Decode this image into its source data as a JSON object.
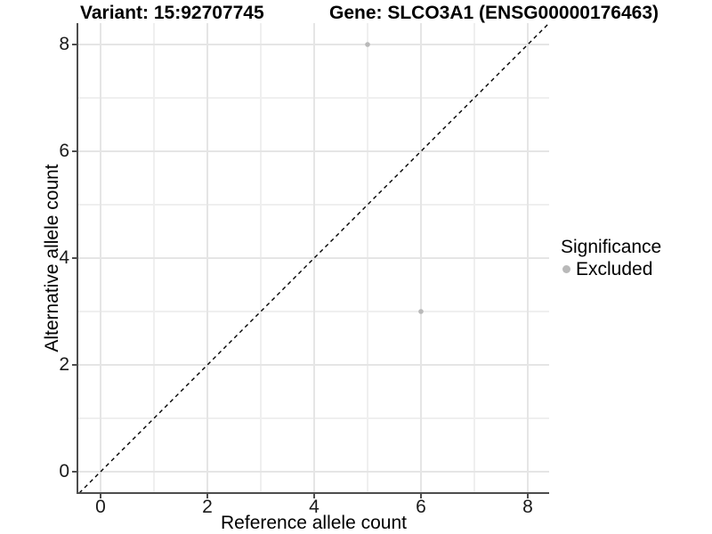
{
  "header": {
    "variant_title": "Variant: 15:92707745",
    "gene_title": "Gene: SLCO3A1 (ENSG00000176463)"
  },
  "chart_data": {
    "type": "scatter",
    "title_left": "Variant: 15:92707745",
    "title_right": "Gene: SLCO3A1 (ENSG00000176463)",
    "xlabel": "Reference allele count",
    "ylabel": "Alternative allele count",
    "xlim": [
      -0.4167,
      8.4
    ],
    "ylim": [
      -0.4,
      8.4
    ],
    "x_ticks": [
      0,
      2,
      4,
      6,
      8
    ],
    "y_ticks": [
      0,
      2,
      4,
      6,
      8
    ],
    "minor_gridlines": [
      1,
      3,
      5,
      7
    ],
    "grid": true,
    "legend_position": "right",
    "identity_line": {
      "style": "dashed",
      "from": [
        -0.4,
        -0.4
      ],
      "to": [
        8.4,
        8.4
      ],
      "color": "#000000"
    },
    "series": [
      {
        "name": "Excluded",
        "color": "#b9b9b9",
        "points": [
          {
            "x": 5,
            "y": 8
          },
          {
            "x": 6,
            "y": 3
          }
        ]
      }
    ]
  },
  "legend": {
    "title": "Significance",
    "items": [
      {
        "label": "Excluded",
        "color": "#b9b9b9"
      }
    ]
  },
  "colors": {
    "background": "#ffffff",
    "grid_major": "#e5e5e5",
    "grid_minor": "#efefef",
    "axis": "#4d4d4d",
    "tick_text": "#1a1a1a",
    "point": "#b9b9b9",
    "identity_line": "#000000"
  }
}
